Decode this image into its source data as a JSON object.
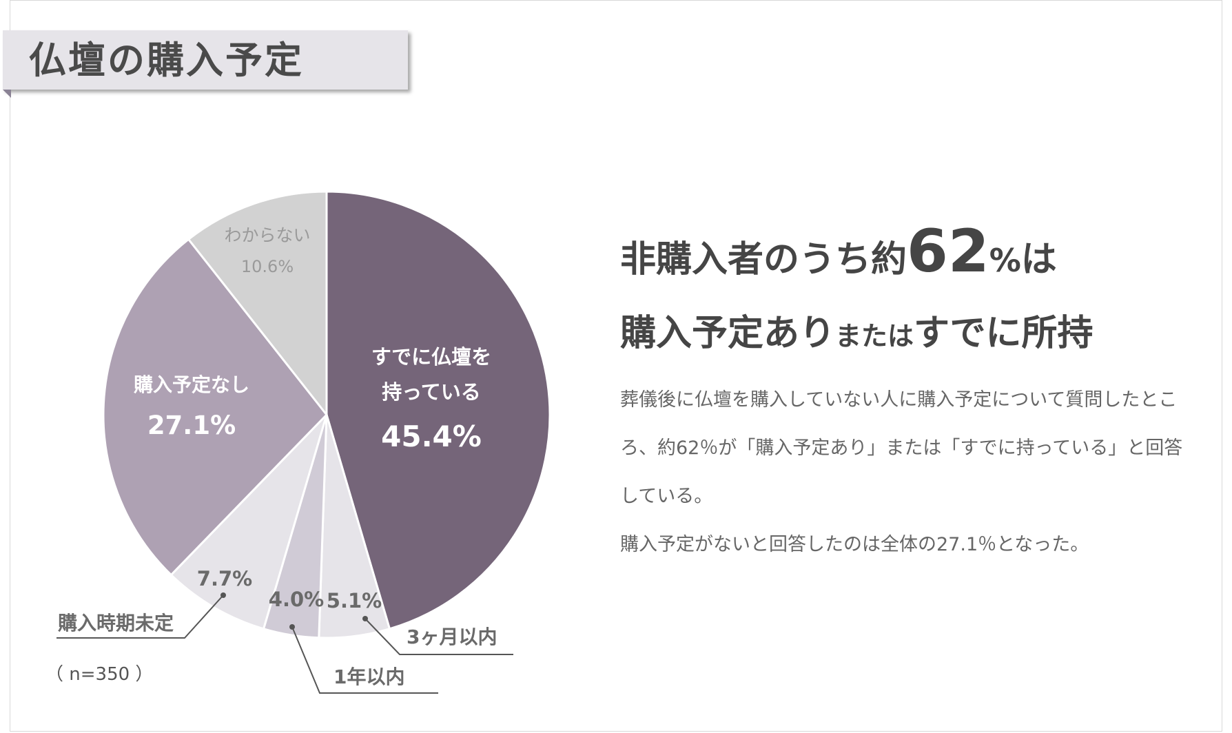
{
  "title": "仏壇の購入予定",
  "sample": "（ n=350 ）",
  "headline": {
    "line1_prefix": "非購入者のうち約",
    "line1_number": "62",
    "line1_percent": "%",
    "line1_suffix": "は",
    "line2_a": "購入予定あり",
    "line2_mid": "または",
    "line2_b": "すでに所持"
  },
  "body": {
    "p1": "葬儀後に仏壇を購入していない人に購入予定について質問したところ、約62％が「購入予定あり」または「すでに持っている」と回答している。",
    "p2": "購入予定がないと回答したのは全体の27.1％となった。"
  },
  "colors": {
    "owned": "#756579",
    "m3": "#e6e4e9",
    "y1": "#d0cbd6",
    "undecided": "#e6e4e9",
    "none": "#aea1b3",
    "unknown": "#d2d2d2"
  },
  "chart_data": {
    "type": "pie",
    "title": "仏壇の購入予定",
    "start_angle_deg": 0,
    "direction": "clockwise",
    "slices": [
      {
        "key": "owned",
        "label_lines": [
          "すでに仏壇を",
          "持っている"
        ],
        "value": 45.4,
        "value_text": "45.4%"
      },
      {
        "key": "m3",
        "label_lines": [
          "3ヶ月以内"
        ],
        "value": 5.1,
        "value_text": "5.1%"
      },
      {
        "key": "y1",
        "label_lines": [
          "1年以内"
        ],
        "value": 4.0,
        "value_text": "4.0%"
      },
      {
        "key": "undecided",
        "label_lines": [
          "購入時期未定"
        ],
        "value": 7.7,
        "value_text": "7.7%"
      },
      {
        "key": "none",
        "label_lines": [
          "購入予定なし"
        ],
        "value": 27.1,
        "value_text": "27.1%"
      },
      {
        "key": "unknown",
        "label_lines": [
          "わからない"
        ],
        "value": 10.6,
        "value_text": "10.6%"
      }
    ]
  }
}
